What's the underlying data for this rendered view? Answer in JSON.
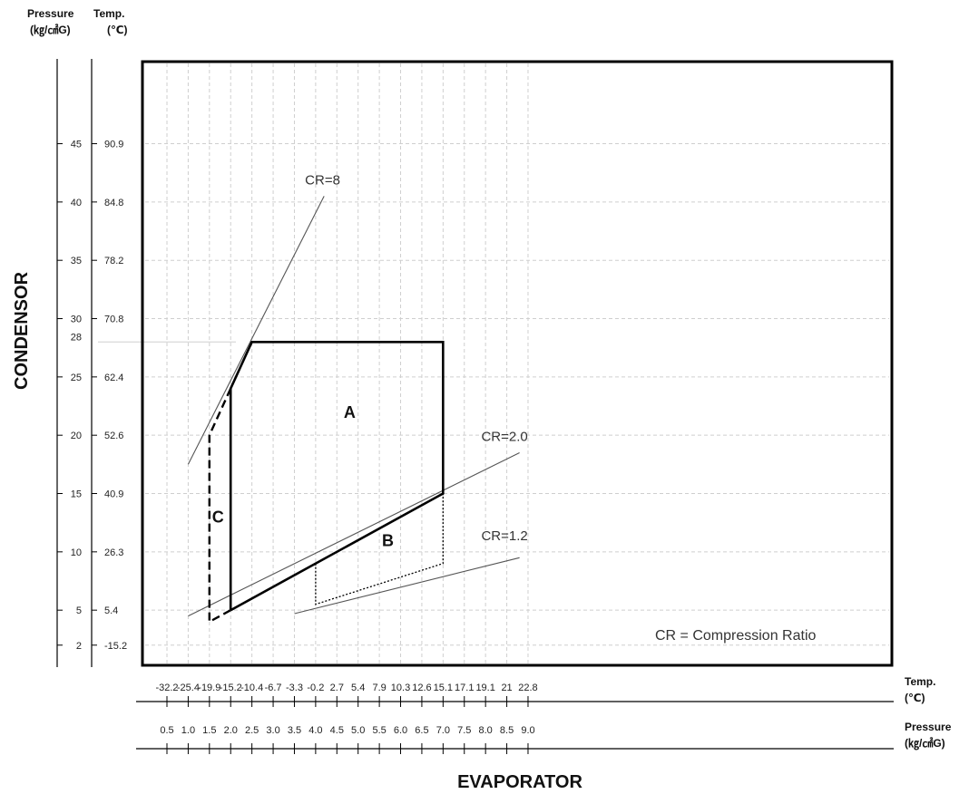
{
  "chart_data": {
    "type": "line",
    "title": "",
    "header": {
      "left_pressure": "Pressure",
      "left_pressure_unit": "(㎏/㎠G)",
      "left_temp": "Temp.",
      "left_temp_unit": "(℃)",
      "bottom_temp": "Temp.",
      "bottom_temp_unit": "(℃)",
      "bottom_pressure": "Pressure",
      "bottom_pressure_unit": "(㎏/㎠G)"
    },
    "ylabel": "CONDENSOR",
    "xlabel": "EVAPORATOR",
    "x_pressure_ticks": [
      "0.5",
      "1.0",
      "1.5",
      "2.0",
      "2.5",
      "3.0",
      "3.5",
      "4.0",
      "4.5",
      "5.0",
      "5.5",
      "6.0",
      "6.5",
      "7.0",
      "7.5",
      "8.0",
      "8.5",
      "9.0"
    ],
    "x_temp_ticks": [
      "-32.2",
      "-25.4",
      "-19.9",
      "-15.2",
      "-10.4",
      "-6.7",
      "-3.3",
      "-0.2",
      "2.7",
      "5.4",
      "7.9",
      "10.3",
      "12.6",
      "15.1",
      "17.1",
      "19.1",
      "21",
      "22.8"
    ],
    "y_pressure_ticks": [
      "45",
      "40",
      "35",
      "30",
      "25",
      "20",
      "15",
      "10",
      "5",
      "2"
    ],
    "y_temp_ticks": [
      "90.9",
      "84.8",
      "78.2",
      "70.8",
      "62.4",
      "52.6",
      "40.9",
      "26.3",
      "5.4",
      "-15.2"
    ],
    "y_extra_tick": "28",
    "xlim": [
      0,
      9.5
    ],
    "ylim": [
      -2,
      47
    ],
    "grid": true,
    "series": [
      {
        "name": "CR=8",
        "style": "thin",
        "x": [
          1.0,
          4.2
        ],
        "y": [
          17.5,
          40.5
        ]
      },
      {
        "name": "CR=2.0",
        "style": "thin",
        "x": [
          1.0,
          8.8
        ],
        "y": [
          4.5,
          18.5
        ]
      },
      {
        "name": "CR=1.2",
        "style": "thin",
        "x": [
          3.5,
          8.8
        ],
        "y": [
          4.7,
          9.5
        ]
      },
      {
        "name": "A",
        "style": "bold",
        "x": [
          2.0,
          2.0,
          2.5,
          7.0,
          7.0,
          2.0
        ],
        "y": [
          5.0,
          24.0,
          28.0,
          28.0,
          15.0,
          5.0
        ]
      },
      {
        "name": "C",
        "style": "dashed",
        "x": [
          2.0,
          1.5,
          1.5,
          2.0
        ],
        "y": [
          24.0,
          20.0,
          4.0,
          5.0
        ]
      },
      {
        "name": "B",
        "style": "dotted",
        "x": [
          4.0,
          4.0,
          7.0,
          7.0,
          4.0
        ],
        "y": [
          9.0,
          5.5,
          9.0,
          15.0,
          9.0
        ]
      }
    ],
    "region_labels": [
      {
        "text": "A",
        "x": 4.8,
        "y": 21.5
      },
      {
        "text": "B",
        "x": 5.7,
        "y": 10.5
      },
      {
        "text": "C",
        "x": 1.7,
        "y": 12.5
      }
    ],
    "line_labels": [
      {
        "text": "CR=8",
        "x": 3.75,
        "y": 41.5
      },
      {
        "text": "CR=2.0",
        "x": 7.9,
        "y": 19.5
      },
      {
        "text": "CR=1.2",
        "x": 7.9,
        "y": 11.0
      }
    ],
    "annotation": "CR =  Compression Ratio"
  }
}
